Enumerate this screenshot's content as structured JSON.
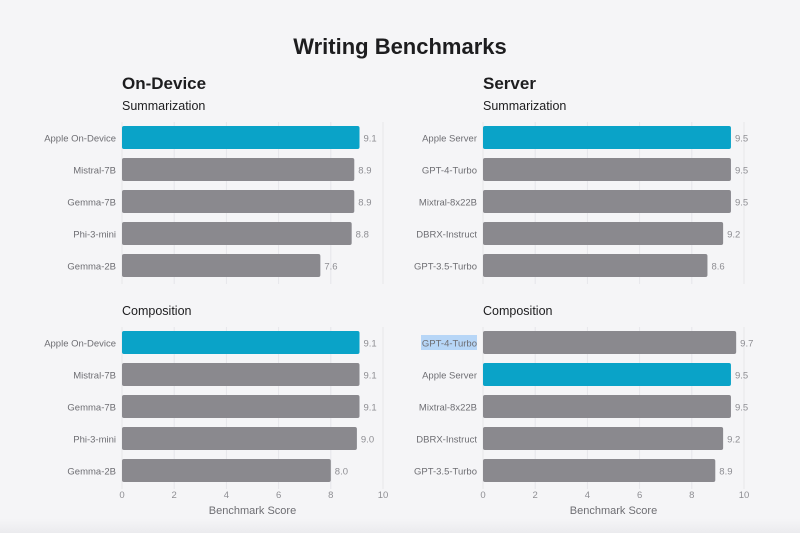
{
  "title": "Writing Benchmarks",
  "colors": {
    "highlight": "#0aa3c8",
    "other": "#8a898e",
    "selection": "#b7d6f7"
  },
  "chart_data": [
    {
      "type": "bar",
      "panel": "On-Device",
      "title": "Summarization",
      "categories": [
        "Apple On-Device",
        "Mistral-7B",
        "Gemma-7B",
        "Phi-3-mini",
        "Gemma-2B"
      ],
      "values": [
        9.1,
        8.9,
        8.9,
        8.8,
        7.6
      ],
      "labels": [
        "9.1",
        "8.9",
        "8.9",
        "8.8",
        "7.6"
      ],
      "highlight": [
        0
      ],
      "xlim": [
        0,
        10
      ]
    },
    {
      "type": "bar",
      "panel": "On-Device",
      "title": "Composition",
      "categories": [
        "Apple On-Device",
        "Mistral-7B",
        "Gemma-7B",
        "Phi-3-mini",
        "Gemma-2B"
      ],
      "values": [
        9.1,
        9.1,
        9.1,
        9.0,
        8.0
      ],
      "labels": [
        "9.1",
        "9.1",
        "9.1",
        "9.0",
        "8.0"
      ],
      "highlight": [
        0
      ],
      "xlim": [
        0,
        10
      ],
      "xticks": [
        "0",
        "2",
        "4",
        "6",
        "8",
        "10"
      ],
      "xlabel": "Benchmark Score"
    },
    {
      "type": "bar",
      "panel": "Server",
      "title": "Summarization",
      "categories": [
        "Apple Server",
        "GPT-4-Turbo",
        "Mixtral-8x22B",
        "DBRX-Instruct",
        "GPT-3.5-Turbo"
      ],
      "values": [
        9.5,
        9.5,
        9.5,
        9.2,
        8.6
      ],
      "labels": [
        "9.5",
        "9.5",
        "9.5",
        "9.2",
        "8.6"
      ],
      "highlight": [
        0
      ],
      "xlim": [
        0,
        10
      ]
    },
    {
      "type": "bar",
      "panel": "Server",
      "title": "Composition",
      "categories": [
        "GPT-4-Turbo",
        "Apple Server",
        "Mixtral-8x22B",
        "DBRX-Instruct",
        "GPT-3.5-Turbo"
      ],
      "values": [
        9.7,
        9.5,
        9.5,
        9.2,
        8.9
      ],
      "labels": [
        "9.7",
        "9.5",
        "9.5",
        "9.2",
        "8.9"
      ],
      "highlight": [
        1
      ],
      "selected_label": [
        0
      ],
      "xlim": [
        0,
        10
      ],
      "xticks": [
        "0",
        "2",
        "4",
        "6",
        "8",
        "10"
      ],
      "xlabel": "Benchmark Score"
    }
  ]
}
